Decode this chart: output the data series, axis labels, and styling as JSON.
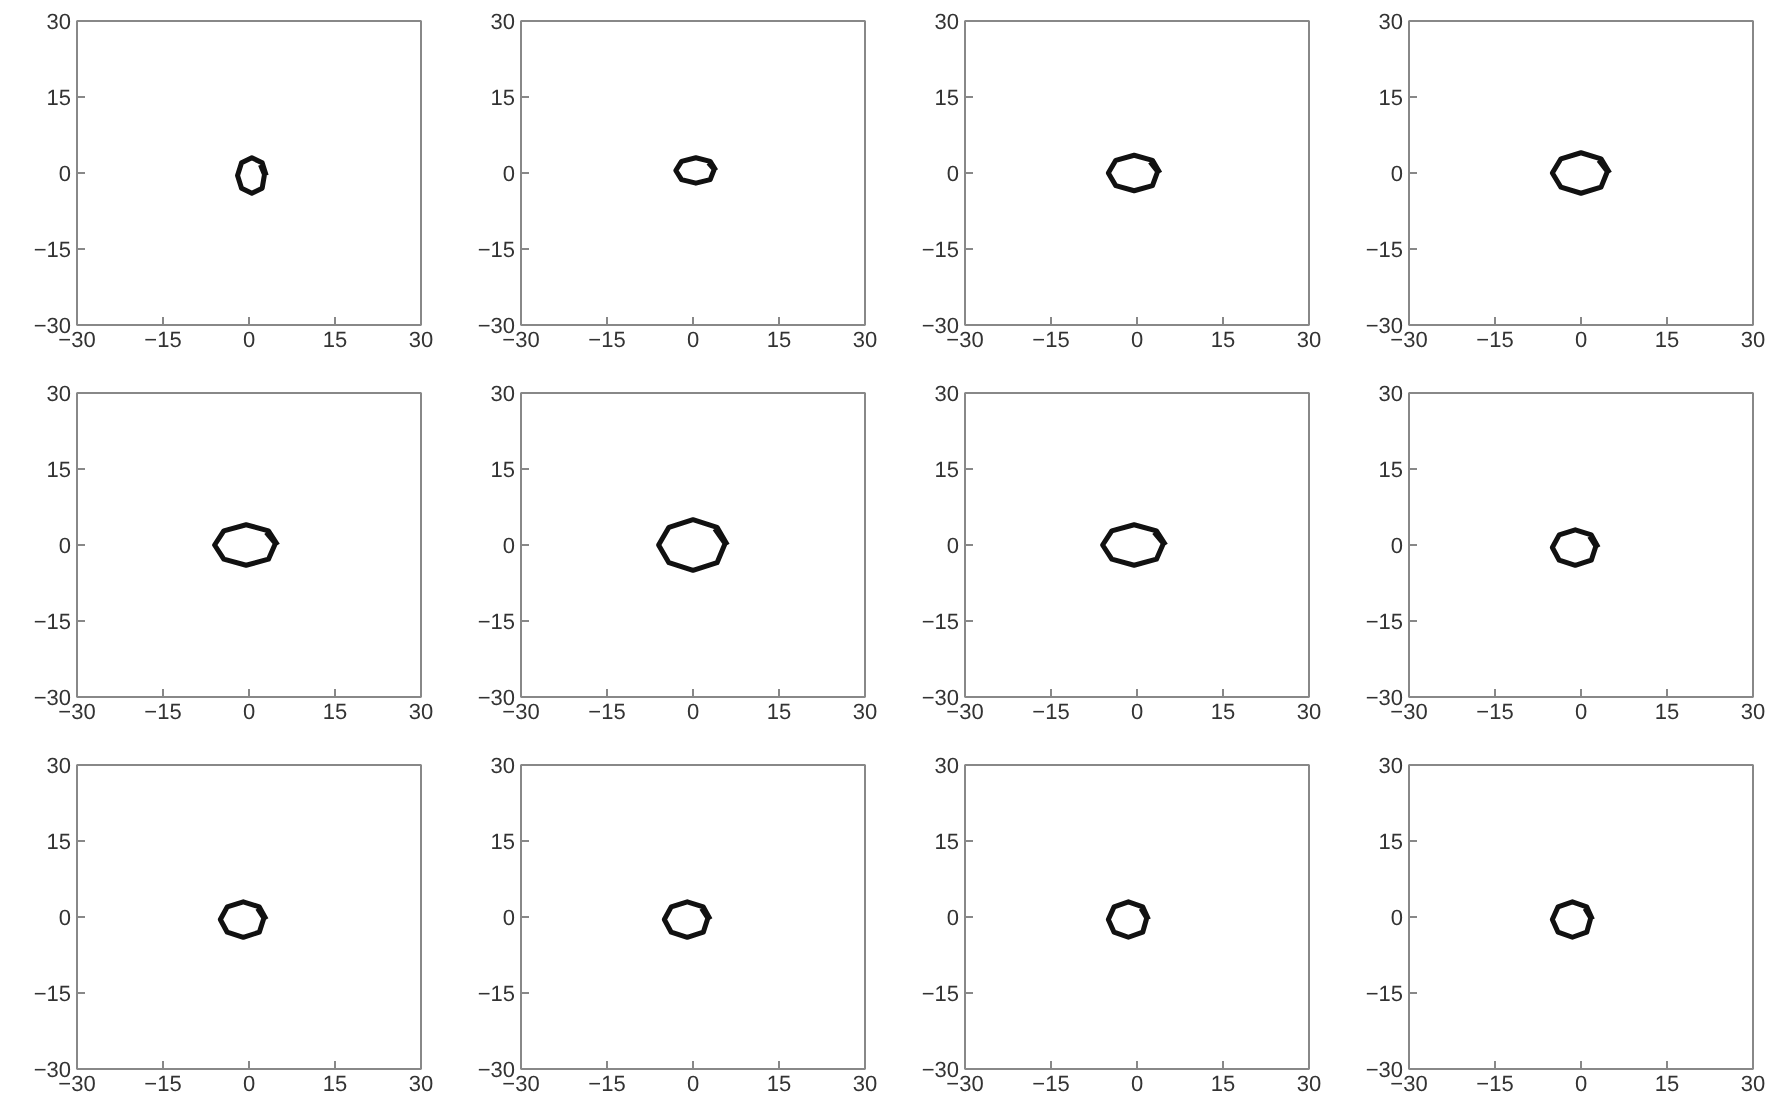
{
  "chart_data": [
    {
      "type": "line",
      "xlim": [
        -30,
        30
      ],
      "ylim": [
        -30,
        30
      ],
      "xticks": [
        -30,
        -15,
        0,
        15,
        30
      ],
      "yticks": [
        -30,
        -15,
        0,
        15,
        30
      ],
      "grid": false,
      "series": [
        {
          "color": "#111111",
          "x": [
            3,
            2.3,
            0.5,
            -1.3,
            -2,
            -1.3,
            0.5,
            2.3,
            2.7,
            2
          ],
          "values": [
            -0.5,
            2,
            3,
            2,
            -0.5,
            -3,
            -4,
            -3,
            -0.3,
            1.6
          ]
        }
      ]
    },
    {
      "type": "line",
      "xlim": [
        -30,
        30
      ],
      "ylim": [
        -30,
        30
      ],
      "xticks": [
        -30,
        -15,
        0,
        15,
        30
      ],
      "yticks": [
        -30,
        -15,
        0,
        15,
        30
      ],
      "grid": false,
      "series": [
        {
          "color": "#111111",
          "x": [
            4,
            3,
            0.5,
            -2,
            -3,
            -2,
            0.5,
            3,
            3.7,
            2.7
          ],
          "values": [
            0.5,
            2.3,
            3,
            2.3,
            0.5,
            -1.3,
            -2,
            -1.3,
            0.7,
            2
          ]
        }
      ]
    },
    {
      "type": "line",
      "xlim": [
        -30,
        30
      ],
      "ylim": [
        -30,
        30
      ],
      "xticks": [
        -30,
        -15,
        0,
        15,
        30
      ],
      "yticks": [
        -30,
        -15,
        0,
        15,
        30
      ],
      "grid": false,
      "series": [
        {
          "color": "#111111",
          "x": [
            4,
            2.7,
            -0.5,
            -3.7,
            -5,
            -3.7,
            -0.5,
            2.7,
            3.6,
            2.3
          ],
          "values": [
            0,
            2.5,
            3.5,
            2.5,
            0,
            -2.5,
            -3.5,
            -2.5,
            0.3,
            2.2
          ]
        }
      ]
    },
    {
      "type": "line",
      "xlim": [
        -30,
        30
      ],
      "ylim": [
        -30,
        30
      ],
      "xticks": [
        -30,
        -15,
        0,
        15,
        30
      ],
      "yticks": [
        -30,
        -15,
        0,
        15,
        30
      ],
      "grid": false,
      "series": [
        {
          "color": "#111111",
          "x": [
            5,
            3.5,
            0,
            -3.5,
            -5,
            -3.5,
            0,
            3.5,
            4.6,
            3.1
          ],
          "values": [
            0,
            2.8,
            4,
            2.8,
            0,
            -2.8,
            -4,
            -2.8,
            0.3,
            2.5
          ]
        }
      ]
    },
    {
      "type": "line",
      "xlim": [
        -30,
        30
      ],
      "ylim": [
        -30,
        30
      ],
      "xticks": [
        -30,
        -15,
        0,
        15,
        30
      ],
      "yticks": [
        -30,
        -15,
        0,
        15,
        30
      ],
      "grid": false,
      "series": [
        {
          "color": "#111111",
          "x": [
            5,
            3.4,
            -0.5,
            -4.4,
            -6,
            -4.4,
            -0.5,
            3.4,
            4.6,
            3
          ],
          "values": [
            0,
            2.8,
            4,
            2.8,
            0,
            -2.8,
            -4,
            -2.8,
            0.3,
            2.5
          ]
        }
      ]
    },
    {
      "type": "line",
      "xlim": [
        -30,
        30
      ],
      "ylim": [
        -30,
        30
      ],
      "xticks": [
        -30,
        -15,
        0,
        15,
        30
      ],
      "yticks": [
        -30,
        -15,
        0,
        15,
        30
      ],
      "grid": false,
      "series": [
        {
          "color": "#111111",
          "x": [
            6,
            4.2,
            0,
            -4.2,
            -6,
            -4.2,
            0,
            4.2,
            5.6,
            3.8
          ],
          "values": [
            0,
            3.5,
            5,
            3.5,
            0,
            -3.5,
            -5,
            -3.5,
            0.3,
            3.2
          ]
        }
      ]
    },
    {
      "type": "line",
      "xlim": [
        -30,
        30
      ],
      "ylim": [
        -30,
        30
      ],
      "xticks": [
        -30,
        -15,
        0,
        15,
        30
      ],
      "yticks": [
        -30,
        -15,
        0,
        15,
        30
      ],
      "grid": false,
      "series": [
        {
          "color": "#111111",
          "x": [
            5,
            3.4,
            -0.5,
            -4.4,
            -6,
            -4.4,
            -0.5,
            3.4,
            4.6,
            3
          ],
          "values": [
            0,
            2.8,
            4,
            2.8,
            0,
            -2.8,
            -4,
            -2.8,
            0.3,
            2.5
          ]
        }
      ]
    },
    {
      "type": "line",
      "xlim": [
        -30,
        30
      ],
      "ylim": [
        -30,
        30
      ],
      "xticks": [
        -30,
        -15,
        0,
        15,
        30
      ],
      "yticks": [
        -30,
        -15,
        0,
        15,
        30
      ],
      "grid": false,
      "series": [
        {
          "color": "#111111",
          "x": [
            3,
            1.8,
            -1,
            -3.8,
            -5,
            -3.8,
            -1,
            1.8,
            2.6,
            1.5
          ],
          "values": [
            -0.5,
            2,
            3,
            2,
            -0.5,
            -3,
            -4,
            -3,
            -0.2,
            1.7
          ]
        }
      ]
    },
    {
      "type": "line",
      "xlim": [
        -30,
        30
      ],
      "ylim": [
        -30,
        30
      ],
      "xticks": [
        -30,
        -15,
        0,
        15,
        30
      ],
      "yticks": [
        -30,
        -15,
        0,
        15,
        30
      ],
      "grid": false,
      "series": [
        {
          "color": "#111111",
          "x": [
            3,
            1.8,
            -1,
            -3.8,
            -5,
            -3.8,
            -1,
            1.8,
            2.6,
            1.5
          ],
          "values": [
            -0.5,
            2,
            3,
            2,
            -0.5,
            -3,
            -4,
            -3,
            -0.2,
            1.7
          ]
        }
      ]
    },
    {
      "type": "line",
      "xlim": [
        -30,
        30
      ],
      "ylim": [
        -30,
        30
      ],
      "xticks": [
        -30,
        -15,
        0,
        15,
        30
      ],
      "yticks": [
        -30,
        -15,
        0,
        15,
        30
      ],
      "grid": false,
      "series": [
        {
          "color": "#111111",
          "x": [
            3,
            1.8,
            -1,
            -3.8,
            -5,
            -3.8,
            -1,
            1.8,
            2.6,
            1.5
          ],
          "values": [
            -0.5,
            2,
            3,
            2,
            -0.5,
            -3,
            -4,
            -3,
            -0.2,
            1.7
          ]
        }
      ]
    },
    {
      "type": "line",
      "xlim": [
        -30,
        30
      ],
      "ylim": [
        -30,
        30
      ],
      "xticks": [
        -30,
        -15,
        0,
        15,
        30
      ],
      "yticks": [
        -30,
        -15,
        0,
        15,
        30
      ],
      "grid": false,
      "series": [
        {
          "color": "#111111",
          "x": [
            2,
            1,
            -1.5,
            -4,
            -5,
            -4,
            -1.5,
            1,
            1.7,
            0.7
          ],
          "values": [
            -0.5,
            2,
            3,
            2,
            -0.5,
            -3,
            -4,
            -3,
            -0.2,
            1.7
          ]
        }
      ]
    },
    {
      "type": "line",
      "xlim": [
        -30,
        30
      ],
      "ylim": [
        -30,
        30
      ],
      "xticks": [
        -30,
        -15,
        0,
        15,
        30
      ],
      "yticks": [
        -30,
        -15,
        0,
        15,
        30
      ],
      "grid": false,
      "series": [
        {
          "color": "#111111",
          "x": [
            2,
            1,
            -1.5,
            -4,
            -5,
            -4,
            -1.5,
            1,
            1.7,
            0.7
          ],
          "values": [
            -0.5,
            2,
            3,
            2,
            -0.5,
            -3,
            -4,
            -3,
            -0.2,
            1.7
          ]
        }
      ]
    }
  ]
}
